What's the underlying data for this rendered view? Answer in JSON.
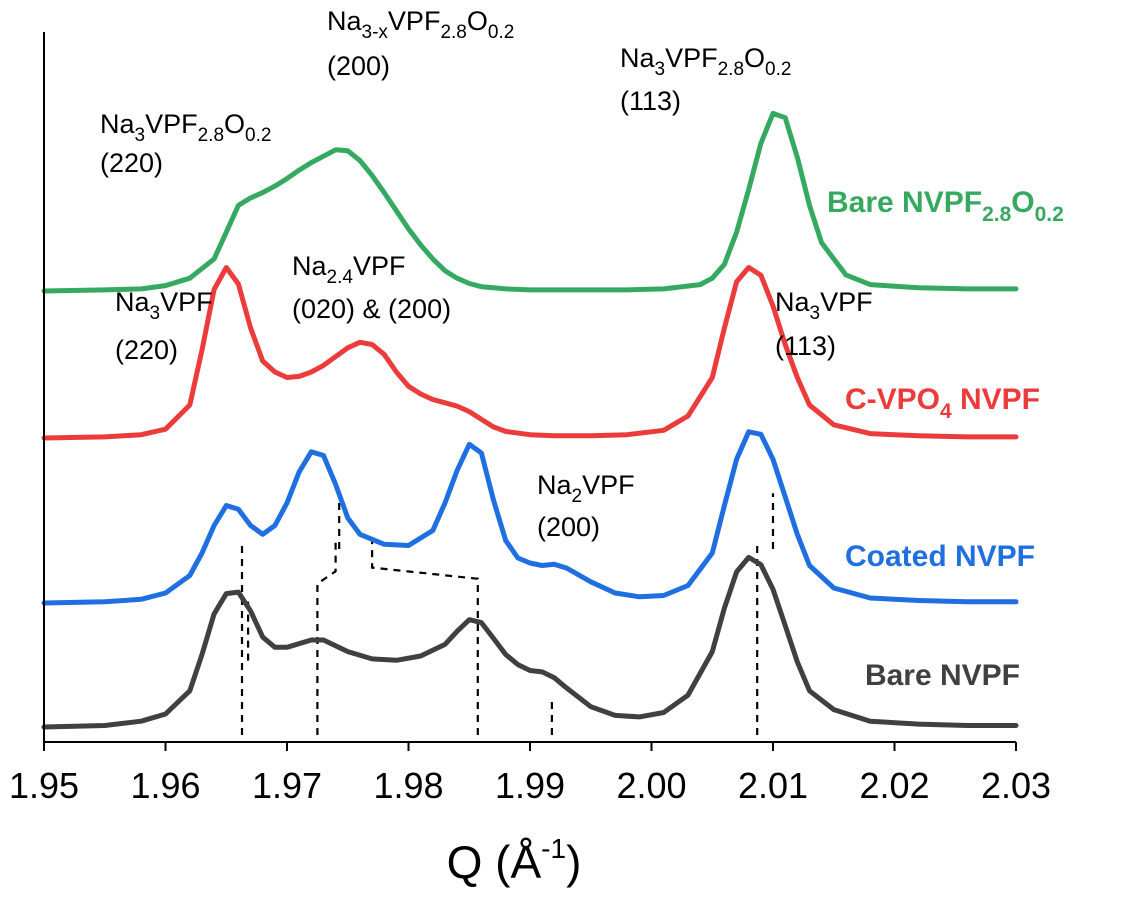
{
  "chart_data": {
    "type": "line",
    "xlabel": "Q (Å",
    "xlabel_sup": "-1",
    "xlabel_close": ")",
    "xlim": [
      1.95,
      2.03
    ],
    "x_ticks": [
      "1.95",
      "1.96",
      "1.97",
      "1.98",
      "1.99",
      "2.00",
      "2.01",
      "2.02",
      "2.03"
    ],
    "ylabel": "",
    "grid": false,
    "series": [
      {
        "name": "Bare NVPF",
        "label_main": "Bare NVPF",
        "label_sub": "",
        "label_tail": "",
        "color": "#404040",
        "x": [
          1.95,
          1.955,
          1.958,
          1.96,
          1.962,
          1.963,
          1.964,
          1.965,
          1.966,
          1.967,
          1.968,
          1.969,
          1.97,
          1.972,
          1.973,
          1.975,
          1.977,
          1.979,
          1.981,
          1.983,
          1.984,
          1.985,
          1.986,
          1.987,
          1.988,
          1.989,
          1.99,
          1.991,
          1.992,
          1.993,
          1.995,
          1.997,
          1.999,
          2.001,
          2.003,
          2.005,
          2.006,
          2.007,
          2.008,
          2.009,
          2.01,
          2.011,
          2.012,
          2.013,
          2.015,
          2.018,
          2.022,
          2.026,
          2.03
        ],
        "y": [
          0.0,
          0.01,
          0.04,
          0.09,
          0.25,
          0.5,
          0.78,
          0.92,
          0.93,
          0.8,
          0.62,
          0.55,
          0.55,
          0.6,
          0.6,
          0.52,
          0.47,
          0.46,
          0.49,
          0.57,
          0.66,
          0.74,
          0.72,
          0.61,
          0.5,
          0.43,
          0.39,
          0.38,
          0.34,
          0.27,
          0.14,
          0.08,
          0.07,
          0.1,
          0.22,
          0.52,
          0.82,
          1.07,
          1.17,
          1.12,
          0.95,
          0.7,
          0.45,
          0.25,
          0.12,
          0.04,
          0.02,
          0.01,
          0.01
        ]
      },
      {
        "name": "Coated NVPF",
        "label_main": "Coated NVPF",
        "label_sub": "",
        "label_tail": "",
        "color": "#1f6fe0",
        "x": [
          1.95,
          1.955,
          1.958,
          1.96,
          1.962,
          1.963,
          1.964,
          1.965,
          1.966,
          1.967,
          1.968,
          1.969,
          1.97,
          1.971,
          1.972,
          1.973,
          1.974,
          1.975,
          1.976,
          1.978,
          1.98,
          1.982,
          1.983,
          1.984,
          1.985,
          1.986,
          1.987,
          1.988,
          1.989,
          1.99,
          1.991,
          1.992,
          1.993,
          1.995,
          1.997,
          1.999,
          2.001,
          2.003,
          2.005,
          2.006,
          2.007,
          2.008,
          2.009,
          2.01,
          2.011,
          2.012,
          2.013,
          2.015,
          2.018,
          2.022,
          2.026,
          2.03
        ],
        "y": [
          0.0,
          0.01,
          0.03,
          0.08,
          0.22,
          0.4,
          0.62,
          0.78,
          0.75,
          0.62,
          0.55,
          0.62,
          0.8,
          1.05,
          1.21,
          1.18,
          0.95,
          0.68,
          0.55,
          0.47,
          0.46,
          0.58,
          0.8,
          1.06,
          1.27,
          1.2,
          0.82,
          0.5,
          0.36,
          0.32,
          0.3,
          0.31,
          0.28,
          0.17,
          0.08,
          0.05,
          0.06,
          0.14,
          0.4,
          0.78,
          1.15,
          1.37,
          1.35,
          1.15,
          0.85,
          0.55,
          0.3,
          0.12,
          0.04,
          0.02,
          0.01,
          0.01
        ]
      },
      {
        "name": "C-VPO4 NVPF",
        "label_main": "C-VPO",
        "label_sub": "4",
        "label_tail": " NVPF",
        "color": "#eb3b3b",
        "x": [
          1.95,
          1.955,
          1.958,
          1.96,
          1.962,
          1.963,
          1.964,
          1.965,
          1.966,
          1.967,
          1.968,
          1.969,
          1.97,
          1.971,
          1.972,
          1.973,
          1.974,
          1.975,
          1.976,
          1.977,
          1.978,
          1.979,
          1.98,
          1.981,
          1.982,
          1.983,
          1.984,
          1.985,
          1.986,
          1.987,
          1.988,
          1.99,
          1.992,
          1.995,
          1.998,
          2.001,
          2.003,
          2.005,
          2.006,
          2.007,
          2.008,
          2.009,
          2.01,
          2.011,
          2.012,
          2.013,
          2.015,
          2.018,
          2.022,
          2.026,
          2.03
        ],
        "y": [
          0.0,
          0.01,
          0.03,
          0.08,
          0.3,
          0.8,
          1.35,
          1.55,
          1.4,
          1.0,
          0.7,
          0.6,
          0.55,
          0.56,
          0.6,
          0.66,
          0.74,
          0.82,
          0.87,
          0.85,
          0.76,
          0.6,
          0.47,
          0.4,
          0.35,
          0.32,
          0.29,
          0.24,
          0.17,
          0.1,
          0.06,
          0.03,
          0.02,
          0.02,
          0.03,
          0.07,
          0.2,
          0.55,
          1.0,
          1.42,
          1.55,
          1.48,
          1.2,
          0.85,
          0.55,
          0.3,
          0.12,
          0.04,
          0.02,
          0.01,
          0.01
        ]
      },
      {
        "name": "Bare NVPF2.8O0.2",
        "label_main": "Bare NVPF",
        "label_sub": "2.8",
        "label_tail": "O",
        "label_sub2": "0.2",
        "color": "#36a960",
        "x": [
          1.95,
          1.955,
          1.958,
          1.96,
          1.962,
          1.964,
          1.965,
          1.966,
          1.967,
          1.968,
          1.969,
          1.97,
          1.971,
          1.972,
          1.973,
          1.974,
          1.975,
          1.976,
          1.977,
          1.978,
          1.979,
          1.98,
          1.981,
          1.982,
          1.983,
          1.984,
          1.985,
          1.986,
          1.987,
          1.988,
          1.99,
          1.992,
          1.995,
          1.998,
          2.001,
          2.004,
          2.005,
          2.006,
          2.007,
          2.008,
          2.009,
          2.01,
          2.011,
          2.012,
          2.013,
          2.014,
          2.016,
          2.018,
          2.022,
          2.026,
          2.03
        ],
        "y": [
          0.0,
          0.01,
          0.02,
          0.05,
          0.12,
          0.3,
          0.55,
          0.8,
          0.87,
          0.92,
          0.98,
          1.05,
          1.13,
          1.2,
          1.26,
          1.32,
          1.31,
          1.22,
          1.08,
          0.92,
          0.75,
          0.58,
          0.43,
          0.3,
          0.19,
          0.12,
          0.07,
          0.04,
          0.03,
          0.02,
          0.01,
          0.01,
          0.01,
          0.01,
          0.02,
          0.06,
          0.12,
          0.25,
          0.55,
          0.95,
          1.38,
          1.66,
          1.62,
          1.25,
          0.8,
          0.45,
          0.15,
          0.06,
          0.03,
          0.02,
          0.02
        ]
      }
    ],
    "reference_lines": [
      {
        "name": "ref-na3vpf-220",
        "points": [
          [
            1.9663,
            0.0
          ],
          [
            1.9663,
            1.55
          ]
        ]
      },
      {
        "name": "ref-na24vpf-020",
        "points": [
          [
            1.9725,
            0.0
          ],
          [
            1.9725,
            1.22
          ],
          [
            1.974,
            1.32
          ],
          [
            1.974,
            1.55
          ]
        ]
      },
      {
        "name": "ref-na24vpf-200",
        "points": [
          [
            1.9857,
            0.0
          ],
          [
            1.9857,
            1.26
          ],
          [
            1.977,
            1.35
          ],
          [
            1.977,
            1.56
          ]
        ]
      },
      {
        "name": "ref-na2vpf-200",
        "points": [
          [
            1.9918,
            0.0
          ],
          [
            1.9918,
            0.3
          ]
        ]
      },
      {
        "name": "ref-na3vpf-113",
        "points": [
          [
            2.0087,
            0.0
          ],
          [
            2.0087,
            1.55
          ]
        ]
      },
      {
        "name": "ref-nvpfo-220",
        "points": [
          [
            1.9668,
            0.6
          ],
          [
            1.9668,
            1.1
          ]
        ]
      },
      {
        "name": "ref-nvpfo-200",
        "points": [
          [
            1.9743,
            1.5
          ],
          [
            1.9743,
            1.95
          ]
        ]
      },
      {
        "name": "ref-nvpfo-113",
        "points": [
          [
            2.01,
            1.5
          ],
          [
            2.01,
            1.95
          ]
        ]
      }
    ],
    "annotations": [
      {
        "name": "ann-nvpfo-220",
        "parts": [
          [
            "Na",
            ""
          ],
          [
            "3",
            "sub"
          ],
          [
            "VPF",
            ""
          ],
          [
            "2.8",
            "sub"
          ],
          [
            "O",
            ""
          ],
          [
            "0.2",
            "sub"
          ]
        ],
        "line2": "(220)"
      },
      {
        "name": "ann-nvpfo-200",
        "parts": [
          [
            "Na",
            ""
          ],
          [
            "3-x",
            "sub"
          ],
          [
            "VPF",
            ""
          ],
          [
            "2.8",
            "sub"
          ],
          [
            "O",
            ""
          ],
          [
            "0.2",
            "sub"
          ]
        ],
        "line2": "(200)"
      },
      {
        "name": "ann-nvpfo-113",
        "parts": [
          [
            "Na",
            ""
          ],
          [
            "3",
            "sub"
          ],
          [
            "VPF",
            ""
          ],
          [
            "2.8",
            "sub"
          ],
          [
            "O",
            ""
          ],
          [
            "0.2",
            "sub"
          ]
        ],
        "line2": "(113)"
      },
      {
        "name": "ann-na3vpf-220",
        "parts": [
          [
            "Na",
            ""
          ],
          [
            "3",
            "sub"
          ],
          [
            "VPF",
            ""
          ]
        ],
        "line2": "(220)"
      },
      {
        "name": "ann-na24vpf",
        "parts": [
          [
            "Na",
            ""
          ],
          [
            "2.4",
            "sub"
          ],
          [
            "VPF",
            ""
          ]
        ],
        "line2": "(020) & (200)"
      },
      {
        "name": "ann-na3vpf-113",
        "parts": [
          [
            "Na",
            ""
          ],
          [
            "3",
            "sub"
          ],
          [
            "VPF",
            ""
          ]
        ],
        "line2": "(113)"
      },
      {
        "name": "ann-na2vpf-200",
        "parts": [
          [
            "Na",
            ""
          ],
          [
            "2",
            "sub"
          ],
          [
            "VPF",
            ""
          ]
        ],
        "line2": "(200)"
      }
    ]
  }
}
